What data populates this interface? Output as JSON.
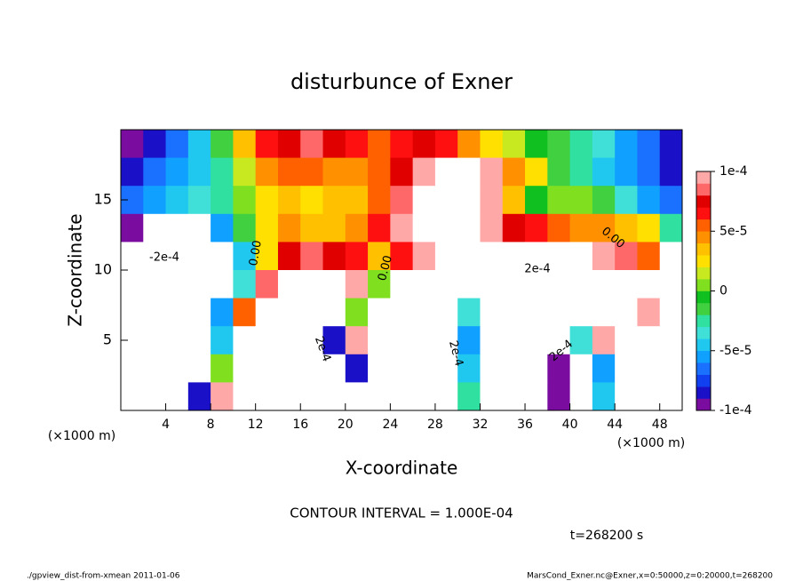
{
  "chart_data": {
    "type": "heatmap",
    "title": "disturbunce of Exner",
    "x_label": "X-coordinate",
    "y_label": "Z-coordinate",
    "x_unit_label": "(×1000 m)",
    "xlim": [
      0,
      50
    ],
    "ylim": [
      0,
      20
    ],
    "xticks": [
      4,
      8,
      12,
      16,
      20,
      24,
      28,
      32,
      36,
      40,
      44,
      48
    ],
    "yticks": [
      5,
      10,
      15
    ],
    "x": [
      1,
      3,
      5,
      7,
      9,
      11,
      13,
      15,
      17,
      19,
      21,
      23,
      25,
      27,
      29,
      31,
      33,
      35,
      37,
      39,
      41,
      43,
      45,
      47,
      49
    ],
    "y": [
      19,
      17,
      15,
      13,
      11,
      9,
      7,
      5,
      3,
      1
    ],
    "values": [
      [
        -9e-05,
        -8e-05,
        -7e-05,
        -5e-05,
        -2e-05,
        3e-05,
        6e-05,
        7e-05,
        8e-05,
        7e-05,
        6e-05,
        5e-05,
        6e-05,
        7e-05,
        6e-05,
        4e-05,
        2e-05,
        1e-05,
        -1e-05,
        -2e-05,
        -3e-05,
        -4e-05,
        -6e-05,
        -7e-05,
        -8e-05
      ],
      [
        -8e-05,
        -7e-05,
        -6e-05,
        -5e-05,
        -3e-05,
        1e-05,
        4e-05,
        5e-05,
        5e-05,
        4e-05,
        4e-05,
        5e-05,
        7e-05,
        9e-05,
        0.00015,
        0.00015,
        9e-05,
        4e-05,
        2e-05,
        -2e-05,
        -3e-05,
        -5e-05,
        -6e-05,
        -7e-05,
        -8e-05
      ],
      [
        -7e-05,
        -6e-05,
        -5e-05,
        -4e-05,
        -3e-05,
        0,
        2e-05,
        3e-05,
        2e-05,
        3e-05,
        3e-05,
        5e-05,
        8e-05,
        0.00015,
        0.0002,
        0.00015,
        9e-05,
        3e-05,
        -1e-05,
        0,
        0,
        -2e-05,
        -4e-05,
        -6e-05,
        -7e-05
      ],
      [
        -9e-05,
        -0.00015,
        -0.00016,
        -0.00012,
        -6e-05,
        -2e-05,
        2e-05,
        4e-05,
        3e-05,
        3e-05,
        4e-05,
        6e-05,
        9e-05,
        0.00014,
        0.0002,
        0.00015,
        0.0001,
        7e-05,
        6e-05,
        5e-05,
        4e-05,
        4e-05,
        3e-05,
        2e-05,
        -3e-05
      ],
      [
        -0.00016,
        -0.00022,
        -0.00025,
        -0.0002,
        -0.00012,
        -5e-05,
        2e-05,
        7e-05,
        8e-05,
        7e-05,
        6e-05,
        3e-05,
        6e-05,
        9e-05,
        0.00015,
        0.00018,
        0.00018,
        0.00019,
        0.00018,
        0.00015,
        0.00012,
        0.0001,
        8e-05,
        5e-05,
        0.00012
      ],
      [
        -0.00025,
        -0.0003,
        -0.00033,
        -0.00026,
        -0.00014,
        -4e-05,
        8e-05,
        0.00012,
        0.00015,
        0.00014,
        0.0001,
        0,
        -0.00015,
        -0.00013,
        -0.00012,
        0.00012,
        0.0002,
        0.00025,
        0.00025,
        0.00025,
        0.00026,
        0.00025,
        0.00023,
        0.00015,
        -0.00012
      ],
      [
        -0.0003,
        -0.00036,
        -0.00035,
        -0.00022,
        -6e-05,
        5e-05,
        0.00018,
        0.0002,
        0.00022,
        0.00015,
        0,
        -0.00012,
        -0.0002,
        -0.00016,
        -0.00012,
        -4e-05,
        0.00015,
        0.0003,
        0.00033,
        0.0003,
        0.00028,
        0.0003,
        0.00028,
        0.0001,
        -0.0002
      ],
      [
        -0.00032,
        -0.00035,
        -0.00032,
        -0.00018,
        -5e-05,
        0.00012,
        0.00025,
        0.00026,
        0.00025,
        -8e-05,
        0.0001,
        -0.0002,
        -0.00022,
        -0.00018,
        -0.00014,
        -6e-05,
        0.00015,
        0.0003,
        0.00032,
        0.00015,
        -4e-05,
        0.0001,
        0.00028,
        0.00014,
        -0.00024
      ],
      [
        -0.00026,
        -0.00028,
        -0.00024,
        -0.00012,
        0,
        0.0002,
        0.0003,
        0.0003,
        0.00028,
        0.00026,
        -8e-05,
        -0.0002,
        -0.00025,
        -0.0002,
        -0.00015,
        -5e-05,
        0.00018,
        0.00025,
        0.00025,
        -0.0001,
        -0.0002,
        -6e-05,
        0.00025,
        0.00014,
        -0.00025
      ],
      [
        -0.0002,
        -0.00022,
        -0.00018,
        -8e-05,
        0.0001,
        0.0003,
        0.00035,
        0.0003,
        0.00028,
        0.0003,
        0.0002,
        -0.0002,
        -0.00025,
        -0.00022,
        -0.00016,
        -3e-05,
        0.00015,
        0.00025,
        0.00025,
        -0.0001,
        -0.00025,
        -5e-05,
        0.00022,
        0.00012,
        -0.00025
      ]
    ],
    "clim": [
      -0.0001,
      0.0001
    ],
    "cticks": [
      {
        "value": 0.0001,
        "label": "1e-4"
      },
      {
        "value": 5e-05,
        "label": "5e-5"
      },
      0,
      {
        "value": -5e-05,
        "label": "-5e-5"
      },
      {
        "value": -0.0001,
        "label": "-1e-4"
      }
    ],
    "colors": [
      "#7a0ca0",
      "#1a10c8",
      "#1040f0",
      "#1a70ff",
      "#10a0ff",
      "#20c8f0",
      "#40e0d8",
      "#30e0a0",
      "#40d040",
      "#10c020",
      "#80e020",
      "#c8e820",
      "#ffe000",
      "#ffc000",
      "#ff9000",
      "#ff6000",
      "#ff1010",
      "#e00000",
      "#ff6868",
      "#ffa8a8"
    ],
    "contour_labels": [
      "-2e-4",
      "0.00",
      "0.00",
      "0.00",
      "2e-4",
      "2e-4",
      "2e-4",
      "2e-4"
    ],
    "contour_note": "CONTOUR INTERVAL = 1.000E-04",
    "time_label": "t=268200 s"
  },
  "footer": {
    "left": "./gpview_dist-from-xmean  2011-01-06",
    "right": "MarsCond_Exner.nc@Exner,x=0:50000,z=0:20000,t=268200"
  }
}
